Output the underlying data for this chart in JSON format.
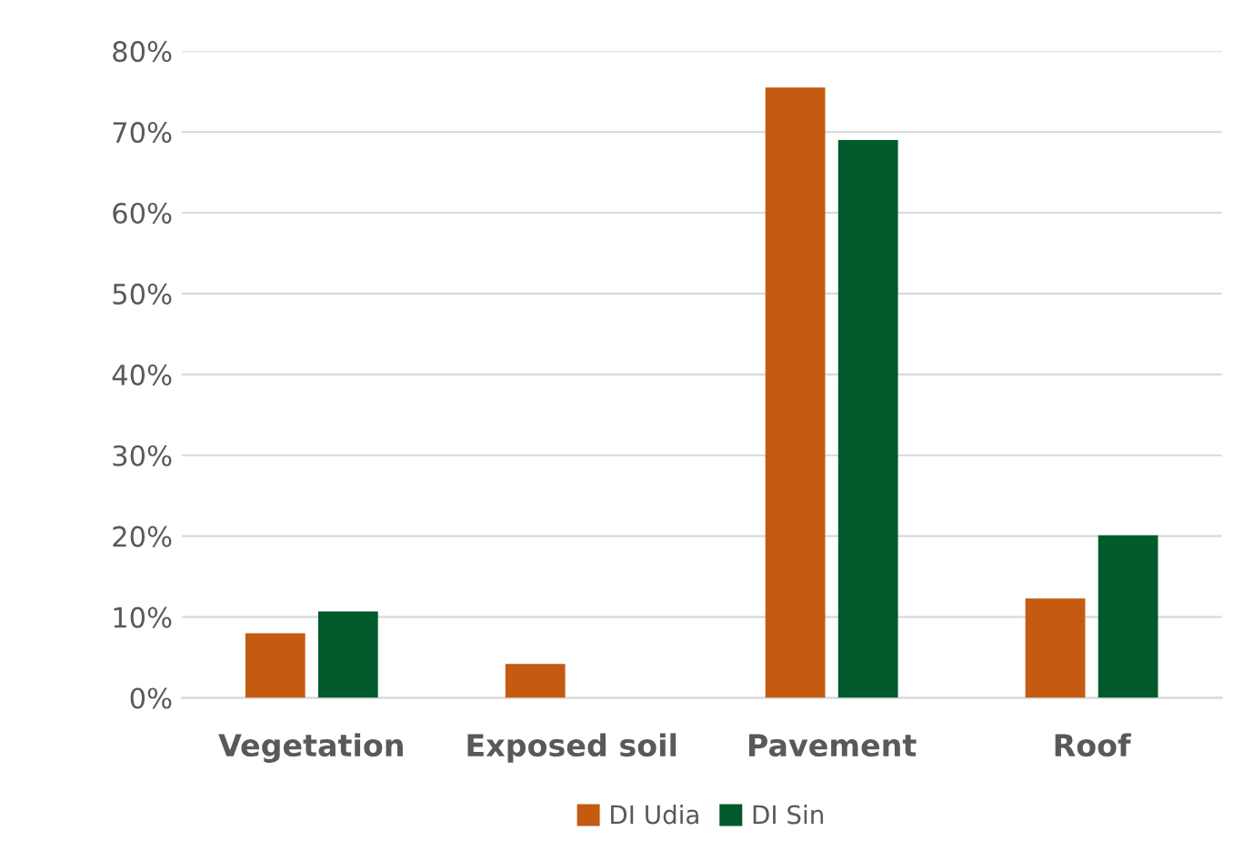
{
  "chart_data": {
    "type": "bar",
    "categories": [
      "Vegetation",
      "Exposed soil",
      "Pavement",
      "Roof"
    ],
    "series": [
      {
        "name": "DI Udia",
        "color": "#c55a11",
        "values": [
          8.0,
          4.2,
          75.5,
          12.3
        ]
      },
      {
        "name": "DI Sin",
        "color": "#005a2b",
        "values": [
          10.7,
          0,
          69.0,
          20.1
        ]
      }
    ],
    "ylim": [
      0,
      80
    ],
    "yticks": [
      {
        "value": 0,
        "label": "0%"
      },
      {
        "value": 10,
        "label": "10%"
      },
      {
        "value": 20,
        "label": "20%"
      },
      {
        "value": 30,
        "label": "30%"
      },
      {
        "value": 40,
        "label": "40%"
      },
      {
        "value": 50,
        "label": "50%"
      },
      {
        "value": 60,
        "label": "60%"
      },
      {
        "value": 70,
        "label": "70%"
      },
      {
        "value": 80,
        "label": "80%"
      }
    ],
    "grid": "y",
    "legend": "bottom"
  }
}
